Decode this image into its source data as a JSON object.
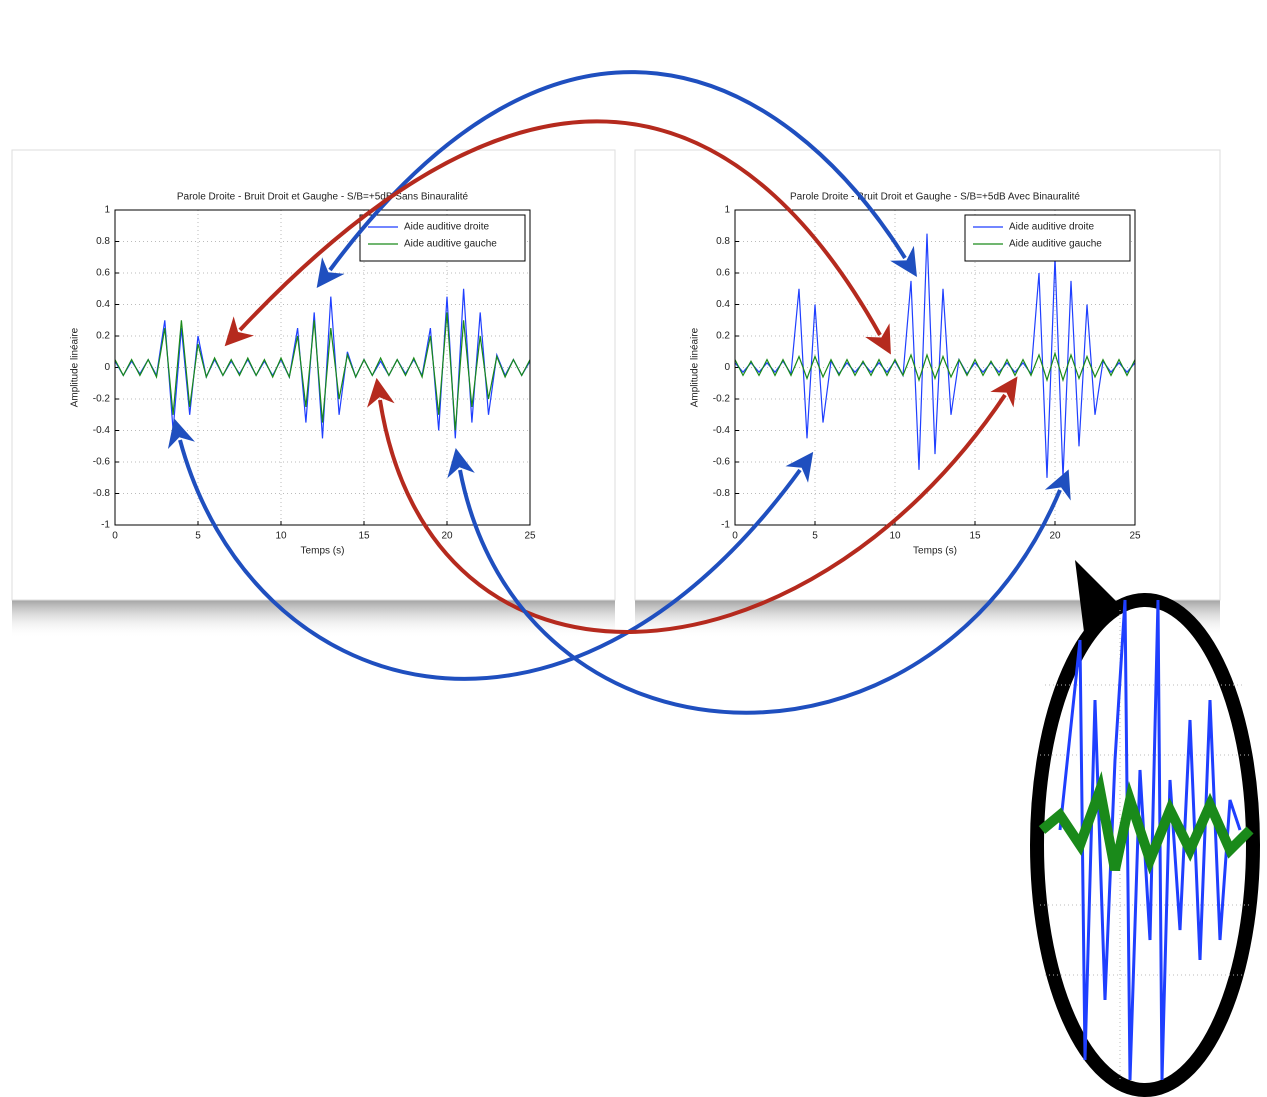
{
  "chart_data": [
    {
      "type": "line",
      "title": "Parole Droite - Bruit Droit et Gaughe - S/B=+5dB Sans Binauralité",
      "xlabel": "Temps (s)",
      "ylabel": "Amplitude linéaire",
      "xlim": [
        0,
        25
      ],
      "ylim": [
        -1,
        1
      ],
      "xticks": [
        0,
        5,
        10,
        15,
        20,
        25
      ],
      "yticks": [
        -1,
        -0.8,
        -0.6,
        -0.4,
        -0.2,
        0,
        0.2,
        0.4,
        0.6,
        0.8,
        1
      ],
      "grid": true,
      "legend": "upper right",
      "x": [
        0,
        0.5,
        1,
        1.5,
        2,
        2.5,
        3,
        3.5,
        4,
        4.5,
        5,
        5.5,
        6,
        6.5,
        7,
        7.5,
        8,
        8.5,
        9,
        9.5,
        10,
        10.5,
        11,
        11.5,
        12,
        12.5,
        13,
        13.5,
        14,
        14.5,
        15,
        15.5,
        16,
        16.5,
        17,
        17.5,
        18,
        18.5,
        19,
        19.5,
        20,
        20.5,
        21,
        21.5,
        22,
        22.5,
        23,
        23.5,
        24,
        24.5,
        25
      ],
      "series": [
        {
          "name": "Aide auditive droite",
          "color": "#1f3fff",
          "values": [
            0.04,
            -0.05,
            0.04,
            -0.04,
            0.05,
            -0.05,
            0.3,
            -0.4,
            0.25,
            -0.3,
            0.2,
            -0.06,
            0.05,
            -0.05,
            0.04,
            -0.04,
            0.05,
            -0.05,
            0.04,
            -0.05,
            0.05,
            -0.06,
            0.25,
            -0.35,
            0.35,
            -0.45,
            0.45,
            -0.3,
            0.1,
            -0.06,
            0.05,
            -0.05,
            0.04,
            -0.05,
            0.05,
            -0.04,
            0.05,
            -0.05,
            0.25,
            -0.4,
            0.45,
            -0.45,
            0.5,
            -0.35,
            0.35,
            -0.3,
            0.08,
            -0.05,
            0.05,
            -0.05,
            0.04
          ]
        },
        {
          "name": "Aide auditive gauche",
          "color": "#1a8a1a",
          "values": [
            0.05,
            -0.05,
            0.05,
            -0.05,
            0.05,
            -0.06,
            0.25,
            -0.3,
            0.3,
            -0.25,
            0.15,
            -0.06,
            0.06,
            -0.05,
            0.05,
            -0.05,
            0.06,
            -0.05,
            0.05,
            -0.06,
            0.06,
            -0.06,
            0.2,
            -0.25,
            0.3,
            -0.35,
            0.25,
            -0.2,
            0.08,
            -0.06,
            0.05,
            -0.05,
            0.06,
            -0.05,
            0.05,
            -0.05,
            0.06,
            -0.06,
            0.2,
            -0.3,
            0.35,
            -0.4,
            0.3,
            -0.25,
            0.2,
            -0.2,
            0.07,
            -0.06,
            0.05,
            -0.05,
            0.05
          ]
        }
      ]
    },
    {
      "type": "line",
      "title": "Parole Droite - Bruit Droit et Gaughe - S/B=+5dB Avec Binauralité",
      "xlabel": "Temps (s)",
      "ylabel": "Amplitude linéaire",
      "xlim": [
        0,
        25
      ],
      "ylim": [
        -1,
        1
      ],
      "xticks": [
        0,
        5,
        10,
        15,
        20,
        25
      ],
      "yticks": [
        -1,
        -0.8,
        -0.6,
        -0.4,
        -0.2,
        0,
        0.2,
        0.4,
        0.6,
        0.8,
        1
      ],
      "grid": true,
      "legend": "upper right",
      "x": [
        0,
        0.5,
        1,
        1.5,
        2,
        2.5,
        3,
        3.5,
        4,
        4.5,
        5,
        5.5,
        6,
        6.5,
        7,
        7.5,
        8,
        8.5,
        9,
        9.5,
        10,
        10.5,
        11,
        11.5,
        12,
        12.5,
        13,
        13.5,
        14,
        14.5,
        15,
        15.5,
        16,
        16.5,
        17,
        17.5,
        18,
        18.5,
        19,
        19.5,
        20,
        20.5,
        21,
        21.5,
        22,
        22.5,
        23,
        23.5,
        24,
        24.5,
        25
      ],
      "series": [
        {
          "name": "Aide auditive droite",
          "color": "#1f3fff",
          "values": [
            0.03,
            -0.03,
            0.03,
            -0.03,
            0.03,
            -0.03,
            0.04,
            -0.04,
            0.5,
            -0.45,
            0.4,
            -0.35,
            0.04,
            -0.04,
            0.03,
            -0.03,
            0.03,
            -0.03,
            0.03,
            -0.03,
            0.04,
            -0.05,
            0.55,
            -0.65,
            0.85,
            -0.55,
            0.5,
            -0.3,
            0.05,
            -0.04,
            0.03,
            -0.03,
            0.03,
            -0.03,
            0.03,
            -0.03,
            0.03,
            -0.04,
            0.6,
            -0.7,
            0.7,
            -0.7,
            0.55,
            -0.5,
            0.4,
            -0.3,
            0.04,
            -0.03,
            0.03,
            -0.03,
            0.03
          ]
        },
        {
          "name": "Aide auditive gauche",
          "color": "#1a8a1a",
          "values": [
            0.05,
            -0.05,
            0.04,
            -0.05,
            0.05,
            -0.05,
            0.05,
            -0.05,
            0.07,
            -0.07,
            0.07,
            -0.06,
            0.05,
            -0.05,
            0.05,
            -0.05,
            0.04,
            -0.05,
            0.05,
            -0.05,
            0.05,
            -0.05,
            0.08,
            -0.08,
            0.08,
            -0.07,
            0.07,
            -0.06,
            0.05,
            -0.05,
            0.05,
            -0.05,
            0.04,
            -0.05,
            0.05,
            -0.05,
            0.05,
            -0.05,
            0.08,
            -0.08,
            0.09,
            -0.08,
            0.08,
            -0.07,
            0.07,
            -0.06,
            0.05,
            -0.05,
            0.05,
            -0.05,
            0.05
          ]
        }
      ]
    }
  ]
}
